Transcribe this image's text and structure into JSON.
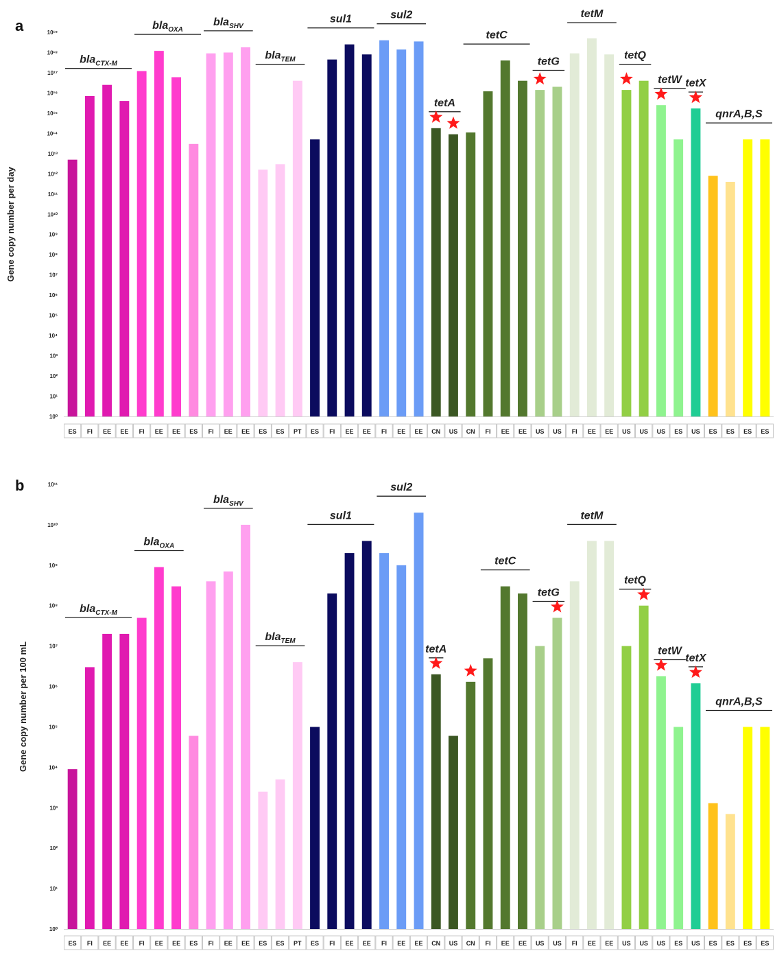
{
  "chart_data": [
    {
      "panel": "a",
      "type": "bar",
      "ylabel": "Gene copy number per day",
      "yscale": "log",
      "ylim": [
        1,
        1e+19
      ],
      "yticks": [
        "10⁰",
        "10¹",
        "10²",
        "10³",
        "10⁴",
        "10⁵",
        "10⁶",
        "10⁷",
        "10⁸",
        "10⁹",
        "10¹⁰",
        "10¹¹",
        "10¹²",
        "10¹³",
        "10¹⁴",
        "10¹⁵",
        "10¹⁶",
        "10¹⁷",
        "10¹⁸",
        "10¹⁹"
      ],
      "categories": [
        "ES",
        "FI",
        "EE",
        "EE",
        "FI",
        "EE",
        "EE",
        "ES",
        "FI",
        "EE",
        "EE",
        "ES",
        "ES",
        "PT",
        "ES",
        "FI",
        "EE",
        "EE",
        "FI",
        "EE",
        "EE",
        "CN",
        "US",
        "CN",
        "FI",
        "EE",
        "EE",
        "US",
        "US",
        "FI",
        "EE",
        "EE",
        "US",
        "US",
        "US",
        "ES",
        "US",
        "ES",
        "ES",
        "ES",
        "ES"
      ],
      "values": [
        5000000000000.0,
        7000000000000000.0,
        2.5e+16,
        4000000000000000.0,
        1.2e+17,
        1.2e+18,
        6e+16,
        30000000000000.0,
        9e+17,
        1e+18,
        1.8e+18,
        1600000000000.0,
        3000000000000.0,
        4e+16,
        50000000000000.0,
        4.5e+17,
        2.5e+18,
        8e+17,
        4e+18,
        1.4e+18,
        3.5e+18,
        180000000000000.0,
        90000000000000.0,
        110000000000000.0,
        1.2e+16,
        4e+17,
        4e+16,
        1.4e+16,
        2e+16,
        9e+17,
        5e+18,
        8e+17,
        1.4e+16,
        4e+16,
        2500000000000000.0,
        50000000000000.0,
        1700000000000000.0,
        800000000000.0,
        400000000000.0,
        50000000000000.0,
        50000000000000.0
      ],
      "colors": [
        "#c8149b",
        "#e01ab0",
        "#e01ab0",
        "#e01ab0",
        "#ff3ccd",
        "#ff3ccd",
        "#ff3ccd",
        "#ff8ae0",
        "#ffa0ef",
        "#ffa0ef",
        "#ffa0ef",
        "#ffcaf4",
        "#ffcaf4",
        "#ffcaf4",
        "#0b0b5e",
        "#0b0b5e",
        "#0b0b5e",
        "#0b0b5e",
        "#6b9cf6",
        "#6b9cf6",
        "#6b9cf6",
        "#3b5723",
        "#3b5723",
        "#53782e",
        "#53782e",
        "#53782e",
        "#53782e",
        "#a8cf8a",
        "#a8cf8a",
        "#e2ebd7",
        "#e2ebd7",
        "#e2ebd7",
        "#92cf45",
        "#92cf45",
        "#8ff38f",
        "#8ff38f",
        "#20cd94",
        "#ffc21b",
        "#ffe28f",
        "#ffff00",
        "#ffff00"
      ],
      "genes": [
        {
          "pre": "bla",
          "sub": "CTX-M",
          "start": 0,
          "end": 3
        },
        {
          "pre": "bla",
          "sub": "OXA",
          "start": 4,
          "end": 7
        },
        {
          "pre": "bla",
          "sub": "SHV",
          "start": 8,
          "end": 10
        },
        {
          "pre": "bla",
          "sub": "TEM",
          "start": 11,
          "end": 13
        },
        {
          "pre": "sul1",
          "sub": "",
          "start": 14,
          "end": 17
        },
        {
          "pre": "sul2",
          "sub": "",
          "start": 18,
          "end": 20
        },
        {
          "pre": "tetA",
          "sub": "",
          "start": 21,
          "end": 22
        },
        {
          "pre": "tetC",
          "sub": "",
          "start": 23,
          "end": 26
        },
        {
          "pre": "tetG",
          "sub": "",
          "start": 27,
          "end": 28
        },
        {
          "pre": "tetM",
          "sub": "",
          "start": 29,
          "end": 31
        },
        {
          "pre": "tetQ",
          "sub": "",
          "start": 32,
          "end": 33
        },
        {
          "pre": "tetW",
          "sub": "",
          "start": 34,
          "end": 35
        },
        {
          "pre": "tetX",
          "sub": "",
          "start": 36,
          "end": 36
        },
        {
          "pre": "qnrA,B,S",
          "sub": "",
          "start": 37,
          "end": 40
        }
      ],
      "stars": [
        21,
        22,
        27,
        32,
        34,
        36
      ]
    },
    {
      "panel": "b",
      "type": "bar",
      "ylabel": "Gene copy number per 100 mL",
      "yscale": "log",
      "ylim": [
        1,
        100000000000.0
      ],
      "yticks": [
        "10⁰",
        "10¹",
        "10²",
        "10³",
        "10⁴",
        "10⁵",
        "10⁶",
        "10⁷",
        "10⁸",
        "10⁹",
        "10¹⁰",
        "10¹¹"
      ],
      "categories": [
        "ES",
        "FI",
        "EE",
        "EE",
        "FI",
        "EE",
        "EE",
        "ES",
        "FI",
        "EE",
        "EE",
        "ES",
        "ES",
        "PT",
        "ES",
        "FI",
        "EE",
        "EE",
        "FI",
        "EE",
        "EE",
        "CN",
        "US",
        "CN",
        "FI",
        "EE",
        "EE",
        "US",
        "US",
        "FI",
        "EE",
        "EE",
        "US",
        "US",
        "US",
        "ES",
        "US",
        "ES",
        "ES",
        "ES",
        "ES"
      ],
      "values": [
        9000,
        3000000.0,
        20000000.0,
        20000000.0,
        50000000.0,
        900000000.0,
        300000000.0,
        60000.0,
        400000000.0,
        700000000.0,
        10000000000.0,
        2500,
        5000,
        4000000.0,
        100000.0,
        200000000.0,
        2000000000.0,
        4000000000.0,
        2000000000.0,
        1000000000.0,
        20000000000.0,
        2000000.0,
        60000.0,
        1300000.0,
        5000000.0,
        300000000.0,
        200000000.0,
        10000000.0,
        50000000.0,
        400000000.0,
        4000000000.0,
        4000000000.0,
        10000000.0,
        100000000.0,
        1800000.0,
        100000.0,
        1200000.0,
        1300,
        700,
        100000.0,
        100000.0
      ],
      "colors": [
        "#c8149b",
        "#e01ab0",
        "#e01ab0",
        "#e01ab0",
        "#ff3ccd",
        "#ff3ccd",
        "#ff3ccd",
        "#ff8ae0",
        "#ffa0ef",
        "#ffa0ef",
        "#ffa0ef",
        "#ffcaf4",
        "#ffcaf4",
        "#ffcaf4",
        "#0b0b5e",
        "#0b0b5e",
        "#0b0b5e",
        "#0b0b5e",
        "#6b9cf6",
        "#6b9cf6",
        "#6b9cf6",
        "#3b5723",
        "#3b5723",
        "#53782e",
        "#53782e",
        "#53782e",
        "#53782e",
        "#a8cf8a",
        "#a8cf8a",
        "#e2ebd7",
        "#e2ebd7",
        "#e2ebd7",
        "#92cf45",
        "#92cf45",
        "#8ff38f",
        "#8ff38f",
        "#20cd94",
        "#ffc21b",
        "#ffe28f",
        "#ffff00",
        "#ffff00"
      ],
      "genes": [
        {
          "pre": "bla",
          "sub": "CTX-M",
          "start": 0,
          "end": 3
        },
        {
          "pre": "bla",
          "sub": "OXA",
          "start": 4,
          "end": 6
        },
        {
          "pre": "bla",
          "sub": "SHV",
          "start": 8,
          "end": 10
        },
        {
          "pre": "bla",
          "sub": "TEM",
          "start": 11,
          "end": 13
        },
        {
          "pre": "sul1",
          "sub": "",
          "start": 14,
          "end": 17
        },
        {
          "pre": "sul2",
          "sub": "",
          "start": 18,
          "end": 20
        },
        {
          "pre": "tetA",
          "sub": "",
          "start": 21,
          "end": 21
        },
        {
          "pre": "tetC",
          "sub": "",
          "start": 24,
          "end": 26
        },
        {
          "pre": "tetG",
          "sub": "",
          "start": 27,
          "end": 28
        },
        {
          "pre": "tetM",
          "sub": "",
          "start": 29,
          "end": 31
        },
        {
          "pre": "tetQ",
          "sub": "",
          "start": 32,
          "end": 33
        },
        {
          "pre": "tetW",
          "sub": "",
          "start": 34,
          "end": 35
        },
        {
          "pre": "tetX",
          "sub": "",
          "start": 36,
          "end": 36
        },
        {
          "pre": "qnrA,B,S",
          "sub": "",
          "start": 37,
          "end": 40
        }
      ],
      "stars": [
        21,
        23,
        28,
        33,
        34,
        36
      ]
    }
  ]
}
